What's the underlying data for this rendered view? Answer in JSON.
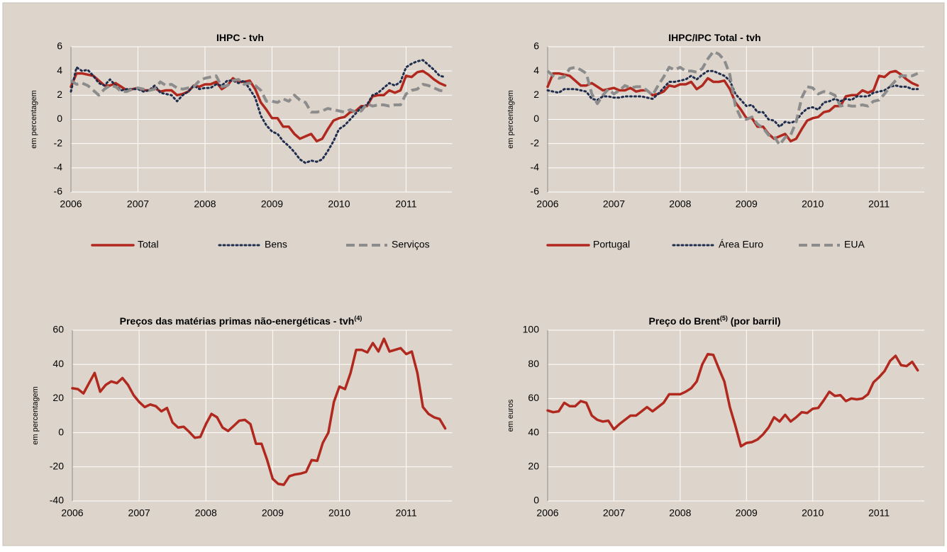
{
  "chart_data": [
    {
      "type": "line",
      "title": "IHPC - tvh",
      "ylabel": "em percentagem",
      "categories": [
        "2006",
        null,
        null,
        null,
        null,
        null,
        null,
        null,
        null,
        null,
        null,
        null,
        "2007",
        null,
        null,
        null,
        null,
        null,
        null,
        null,
        null,
        null,
        null,
        null,
        "2008",
        null,
        null,
        null,
        null,
        null,
        null,
        null,
        null,
        null,
        null,
        null,
        "2009",
        null,
        null,
        null,
        null,
        null,
        null,
        null,
        null,
        null,
        null,
        null,
        "2010",
        null,
        null,
        null,
        null,
        null,
        null,
        null,
        null,
        null,
        null,
        null,
        "2011",
        null,
        null,
        null,
        null,
        null,
        null,
        null
      ],
      "ylim": [
        -6,
        6
      ],
      "yticks": [
        -6,
        -4,
        -2,
        0,
        2,
        4,
        6
      ],
      "grid": true,
      "series": [
        {
          "name": "Total",
          "color": "#b0281e",
          "style": "solid",
          "values": [
            2.7,
            3.8,
            3.8,
            3.7,
            3.6,
            3.2,
            2.8,
            2.8,
            3.0,
            2.7,
            2.4,
            2.5,
            2.6,
            2.4,
            2.4,
            2.6,
            2.3,
            2.4,
            2.4,
            2.0,
            2.1,
            2.3,
            2.8,
            2.7,
            2.9,
            2.9,
            3.1,
            2.5,
            2.8,
            3.4,
            3.1,
            3.1,
            3.2,
            2.5,
            1.4,
            0.8,
            0.1,
            0.1,
            -0.6,
            -0.6,
            -1.2,
            -1.6,
            -1.4,
            -1.2,
            -1.8,
            -1.6,
            -0.8,
            -0.1,
            0.1,
            0.2,
            0.6,
            0.7,
            1.1,
            1.1,
            1.9,
            2.0,
            2.0,
            2.4,
            2.2,
            2.4,
            3.6,
            3.5,
            3.9,
            4.0,
            3.7,
            3.3,
            3.0,
            2.8
          ]
        },
        {
          "name": "Bens",
          "color": "#1f2d4e",
          "style": "dotted",
          "values": [
            2.3,
            4.3,
            4.0,
            4.1,
            3.6,
            3.0,
            2.8,
            3.3,
            2.8,
            2.4,
            2.5,
            2.5,
            2.5,
            2.3,
            2.4,
            2.8,
            2.2,
            2.1,
            2.0,
            1.5,
            2.0,
            2.3,
            2.8,
            2.5,
            2.6,
            2.6,
            2.9,
            2.8,
            3.2,
            3.2,
            3.0,
            3.2,
            2.5,
            1.8,
            0.3,
            -0.5,
            -1.0,
            -1.2,
            -1.8,
            -2.2,
            -2.7,
            -3.3,
            -3.6,
            -3.4,
            -3.5,
            -3.3,
            -2.6,
            -1.8,
            -0.8,
            -0.5,
            0.0,
            0.5,
            1.0,
            1.2,
            2.0,
            2.2,
            2.6,
            3.0,
            2.8,
            3.1,
            4.3,
            4.6,
            4.8,
            4.9,
            4.5,
            4.1,
            3.6,
            3.5
          ]
        },
        {
          "name": "Serviços",
          "color": "#8c8c8c",
          "style": "dashed",
          "values": [
            3.2,
            2.9,
            3.0,
            2.8,
            2.4,
            2.0,
            2.5,
            2.8,
            2.7,
            2.3,
            2.3,
            2.5,
            2.6,
            2.5,
            2.4,
            2.5,
            3.1,
            2.8,
            2.9,
            2.6,
            2.5,
            2.6,
            2.7,
            3.2,
            3.4,
            3.5,
            3.6,
            2.7,
            2.8,
            3.2,
            3.3,
            2.9,
            3.0,
            2.8,
            2.4,
            1.5,
            1.5,
            1.4,
            1.7,
            1.5,
            2.0,
            1.6,
            1.4,
            0.6,
            0.6,
            0.7,
            0.9,
            0.8,
            0.7,
            0.6,
            0.8,
            0.6,
            0.7,
            1.3,
            1.1,
            1.2,
            1.2,
            1.1,
            1.2,
            1.2,
            2.1,
            2.4,
            2.5,
            2.9,
            2.8,
            2.6,
            2.4,
            2.3
          ]
        }
      ]
    },
    {
      "type": "line",
      "title": "IHPC/IPC Total - tvh",
      "ylabel": "em percentagem",
      "categories": [
        "2006",
        null,
        null,
        null,
        null,
        null,
        null,
        null,
        null,
        null,
        null,
        null,
        "2007",
        null,
        null,
        null,
        null,
        null,
        null,
        null,
        null,
        null,
        null,
        null,
        "2008",
        null,
        null,
        null,
        null,
        null,
        null,
        null,
        null,
        null,
        null,
        null,
        "2009",
        null,
        null,
        null,
        null,
        null,
        null,
        null,
        null,
        null,
        null,
        null,
        "2010",
        null,
        null,
        null,
        null,
        null,
        null,
        null,
        null,
        null,
        null,
        null,
        "2011",
        null,
        null,
        null,
        null,
        null,
        null,
        null
      ],
      "ylim": [
        -6,
        6
      ],
      "yticks": [
        -6,
        -4,
        -2,
        0,
        2,
        4,
        6
      ],
      "grid": true,
      "series": [
        {
          "name": "Portugal",
          "color": "#b0281e",
          "style": "solid",
          "values": [
            2.7,
            3.8,
            3.8,
            3.7,
            3.6,
            3.2,
            2.8,
            2.8,
            3.0,
            2.7,
            2.4,
            2.5,
            2.6,
            2.4,
            2.4,
            2.6,
            2.3,
            2.4,
            2.4,
            2.0,
            2.1,
            2.3,
            2.8,
            2.7,
            2.9,
            2.9,
            3.1,
            2.5,
            2.8,
            3.4,
            3.1,
            3.1,
            3.2,
            2.5,
            1.4,
            0.8,
            0.1,
            0.1,
            -0.6,
            -0.6,
            -1.2,
            -1.6,
            -1.4,
            -1.2,
            -1.8,
            -1.6,
            -0.8,
            -0.1,
            0.1,
            0.2,
            0.6,
            0.7,
            1.1,
            1.1,
            1.9,
            2.0,
            2.0,
            2.4,
            2.2,
            2.4,
            3.6,
            3.5,
            3.9,
            4.0,
            3.7,
            3.3,
            3.0,
            2.8
          ]
        },
        {
          "name": "Área Euro",
          "color": "#1f2d4e",
          "style": "dotted",
          "values": [
            2.4,
            2.3,
            2.2,
            2.5,
            2.5,
            2.5,
            2.4,
            2.3,
            1.7,
            1.6,
            1.9,
            1.9,
            1.8,
            1.8,
            1.9,
            1.9,
            1.9,
            1.9,
            1.8,
            1.7,
            2.1,
            2.6,
            3.1,
            3.1,
            3.2,
            3.3,
            3.6,
            3.3,
            3.7,
            4.0,
            4.0,
            3.8,
            3.6,
            3.2,
            2.1,
            1.6,
            1.1,
            1.2,
            0.6,
            0.6,
            0.0,
            -0.1,
            -0.6,
            -0.2,
            -0.3,
            -0.1,
            0.5,
            0.9,
            1.0,
            0.8,
            1.4,
            1.5,
            1.7,
            1.5,
            1.7,
            1.6,
            1.9,
            1.9,
            1.9,
            2.2,
            2.3,
            2.4,
            2.7,
            2.8,
            2.7,
            2.7,
            2.5,
            2.5
          ]
        },
        {
          "name": "EUA",
          "color": "#8c8c8c",
          "style": "dashed",
          "values": [
            4.0,
            3.6,
            3.4,
            3.5,
            4.2,
            4.3,
            4.1,
            3.8,
            2.1,
            1.3,
            2.0,
            2.5,
            2.1,
            2.4,
            2.8,
            2.6,
            2.7,
            2.7,
            2.4,
            2.0,
            2.8,
            3.5,
            4.3,
            4.1,
            4.3,
            4.0,
            4.0,
            3.9,
            4.2,
            5.0,
            5.6,
            5.4,
            4.9,
            3.7,
            1.1,
            0.1,
            0.0,
            0.2,
            -0.4,
            -0.7,
            -1.3,
            -1.4,
            -2.1,
            -1.5,
            -1.3,
            -0.2,
            1.8,
            2.7,
            2.6,
            2.1,
            2.3,
            2.2,
            2.0,
            1.1,
            1.2,
            1.1,
            1.1,
            1.2,
            1.1,
            1.5,
            1.6,
            2.1,
            2.7,
            3.2,
            3.6,
            3.6,
            3.6,
            3.8
          ]
        }
      ]
    },
    {
      "type": "line",
      "title": "Preços das matérias primas não-energéticas - tvh",
      "title_superscript": "(4)",
      "ylabel": "em percentagem",
      "categories": [
        "2006",
        null,
        null,
        null,
        null,
        null,
        null,
        null,
        null,
        null,
        null,
        null,
        "2007",
        null,
        null,
        null,
        null,
        null,
        null,
        null,
        null,
        null,
        null,
        null,
        "2008",
        null,
        null,
        null,
        null,
        null,
        null,
        null,
        null,
        null,
        null,
        null,
        "2009",
        null,
        null,
        null,
        null,
        null,
        null,
        null,
        null,
        null,
        null,
        null,
        "2010",
        null,
        null,
        null,
        null,
        null,
        null,
        null,
        null,
        null,
        null,
        null,
        "2011",
        null,
        null,
        null,
        null,
        null,
        null,
        null
      ],
      "ylim": [
        -40,
        60
      ],
      "yticks": [
        -40,
        -20,
        0,
        20,
        40,
        60
      ],
      "grid": true,
      "series": [
        {
          "color": "#b0281e",
          "style": "solid",
          "values": [
            26,
            25.5,
            23,
            29,
            35,
            24,
            28,
            30,
            29,
            32,
            28,
            22,
            18,
            15,
            16.5,
            15.5,
            12.5,
            14.5,
            6,
            3,
            3.5,
            0.5,
            -3,
            -2.5,
            5,
            11,
            9,
            3,
            1,
            4,
            7,
            7.5,
            5,
            -6.5,
            -6.5,
            -16,
            -27,
            -30,
            -30.5,
            -25.5,
            -24.5,
            -24,
            -23,
            -16,
            -16.5,
            -6,
            0,
            18,
            27,
            25.5,
            35,
            48.5,
            48.5,
            47,
            52.5,
            47.5,
            55,
            47.5,
            48.5,
            49.5,
            46,
            47.5,
            35,
            15,
            11,
            9,
            8,
            2.5
          ]
        }
      ]
    },
    {
      "type": "line",
      "title": "Preço do Brent",
      "title_superscript": "(5)",
      "title_suffix": " (por barril)",
      "ylabel": "em euros",
      "categories": [
        "2006",
        null,
        null,
        null,
        null,
        null,
        null,
        null,
        null,
        null,
        null,
        null,
        "2007",
        null,
        null,
        null,
        null,
        null,
        null,
        null,
        null,
        null,
        null,
        null,
        "2008",
        null,
        null,
        null,
        null,
        null,
        null,
        null,
        null,
        null,
        null,
        null,
        "2009",
        null,
        null,
        null,
        null,
        null,
        null,
        null,
        null,
        null,
        null,
        null,
        "2010",
        null,
        null,
        null,
        null,
        null,
        null,
        null,
        null,
        null,
        null,
        null,
        "2011",
        null,
        null,
        null,
        null,
        null,
        null,
        null
      ],
      "ylim": [
        0,
        100
      ],
      "yticks": [
        0,
        20,
        40,
        60,
        80,
        100
      ],
      "grid": true,
      "series": [
        {
          "color": "#b0281e",
          "style": "solid",
          "values": [
            53,
            52,
            52.5,
            57.5,
            55.5,
            55.5,
            58.5,
            57.5,
            50,
            47.5,
            46.5,
            47,
            42,
            45,
            47.5,
            50,
            50,
            52.5,
            55,
            52.5,
            55,
            57.5,
            62.5,
            62.5,
            62.5,
            64,
            66,
            70,
            80,
            86,
            85.5,
            77.5,
            70,
            55,
            44,
            32,
            34,
            34.5,
            36,
            39,
            43,
            49,
            46.5,
            50.5,
            46.5,
            49,
            52,
            51.5,
            54,
            54.5,
            59,
            64,
            61.5,
            62,
            58.5,
            60,
            59.5,
            60,
            62.5,
            69.5,
            72.5,
            76,
            82,
            85,
            79.5,
            79,
            81.5,
            76.5
          ]
        }
      ]
    }
  ]
}
